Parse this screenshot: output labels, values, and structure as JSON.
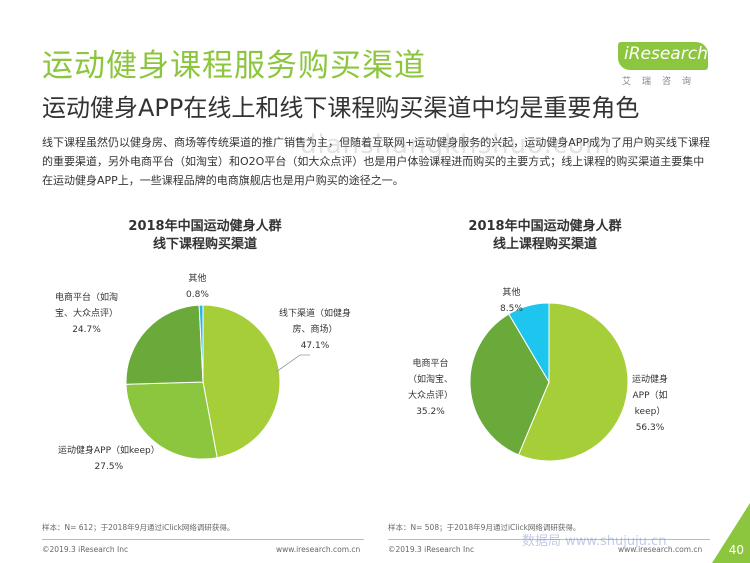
{
  "header": {
    "title": "运动健身课程服务购买渠道",
    "subtitle": "运动健身APP在线上和线下课程购买渠道中均是重要角色",
    "logo_text": "iResearch",
    "logo_sub": "艾瑞咨询",
    "description": "线下课程虽然仍以健身房、商场等传统渠道的推广销售为主，但随着互联网+运动健身服务的兴起，运动健身APP成为了用户购买线下课程的重要渠道，另外电商平台（如淘宝）和O2O平台（如大众点评）也是用户体验课程进而购买的主要方式；线上课程的购买渠道主要集中在运动健身APP上，一些课程品牌的电商旗舰店也是用户购买的途径之一。",
    "watermark": "dianshangkhshuo.com"
  },
  "chart_data": [
    {
      "type": "pie",
      "title": [
        "2018年中国运动健身人群",
        "线下课程购买渠道"
      ],
      "slices": [
        {
          "label": [
            "线下渠道（如健身",
            "房、商场）"
          ],
          "value": 47.1,
          "display": "47.1%",
          "color": "#a6ce39"
        },
        {
          "label": [
            "运动健身APP（如keep）"
          ],
          "value": 27.5,
          "display": "27.5%",
          "color": "#8cc63e"
        },
        {
          "label": [
            "电商平台（如淘",
            "宝、大众点评）"
          ],
          "value": 24.7,
          "display": "24.7%",
          "color": "#6aaa3a"
        },
        {
          "label": [
            "其他"
          ],
          "value": 0.8,
          "display": "0.8%",
          "color": "#29b6e8"
        }
      ]
    },
    {
      "type": "pie",
      "title": [
        "2018年中国运动健身人群",
        "线上课程购买渠道"
      ],
      "slices": [
        {
          "label": [
            "运动健身",
            "APP（如",
            "keep）"
          ],
          "value": 56.3,
          "display": "56.3%",
          "color": "#a6ce39"
        },
        {
          "label": [
            "电商平台",
            "（如淘宝、",
            "大众点评）"
          ],
          "value": 35.2,
          "display": "35.2%",
          "color": "#6aaa3a"
        },
        {
          "label": [
            "其他"
          ],
          "value": 8.5,
          "display": "8.5%",
          "color": "#1ec6ef"
        }
      ]
    }
  ],
  "notes": {
    "left": "样本：N= 612；于2018年9月通过iClick网络调研获得。",
    "right": "样本：N= 508；于2018年9月通过iClick网络调研获得。"
  },
  "footer": {
    "copyright_left": "©2019.3  iResearch Inc",
    "url_left": "www.iresearch.com.cn",
    "copyright_right": "©2019.3  iResearch Inc",
    "url_right": "www.iresearch.com.cn",
    "watermark": "数据局  www.shujuju.cn",
    "page": "40"
  }
}
